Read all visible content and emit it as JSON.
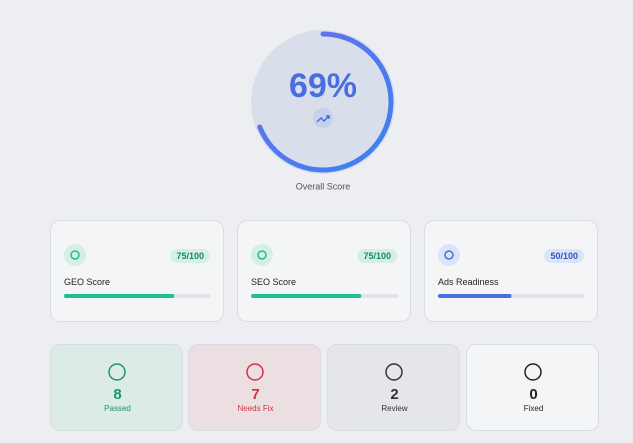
{
  "overall": {
    "score": {
      "value": 69,
      "label": "69%"
    },
    "range": [
      0,
      100
    ],
    "label": "Overall Score"
  },
  "cards": [
    {
      "title": "GEO Score",
      "score": {
        "value": 75,
        "label": "75/100"
      },
      "max": 100,
      "color": "#1fbf8f",
      "tint": "#d6efe6",
      "text_color": "#138a66"
    },
    {
      "title": "SEO Score",
      "score": {
        "value": 75,
        "label": "75/100"
      },
      "max": 100,
      "color": "#1fbf8f",
      "tint": "#d6efe6",
      "text_color": "#138a66"
    },
    {
      "title": "Ads Readiness",
      "score": {
        "value": 50,
        "label": "50/100"
      },
      "max": 100,
      "color": "#4a6ee0",
      "tint": "#dbe3f6",
      "text_color": "#3556c4"
    }
  ],
  "status": [
    {
      "count": "8",
      "label": "Passed",
      "bg": "#dcebe6",
      "color": "#17976d"
    },
    {
      "count": "7",
      "label": "Needs Fix",
      "bg": "#ecdfe2",
      "color": "#d6303f"
    },
    {
      "count": "2",
      "label": "Review",
      "bg": "#e4e6ea",
      "color": "#333"
    },
    {
      "count": "0",
      "label": "Fixed",
      "bg": "#f4f5f7",
      "color": "#222"
    }
  ]
}
